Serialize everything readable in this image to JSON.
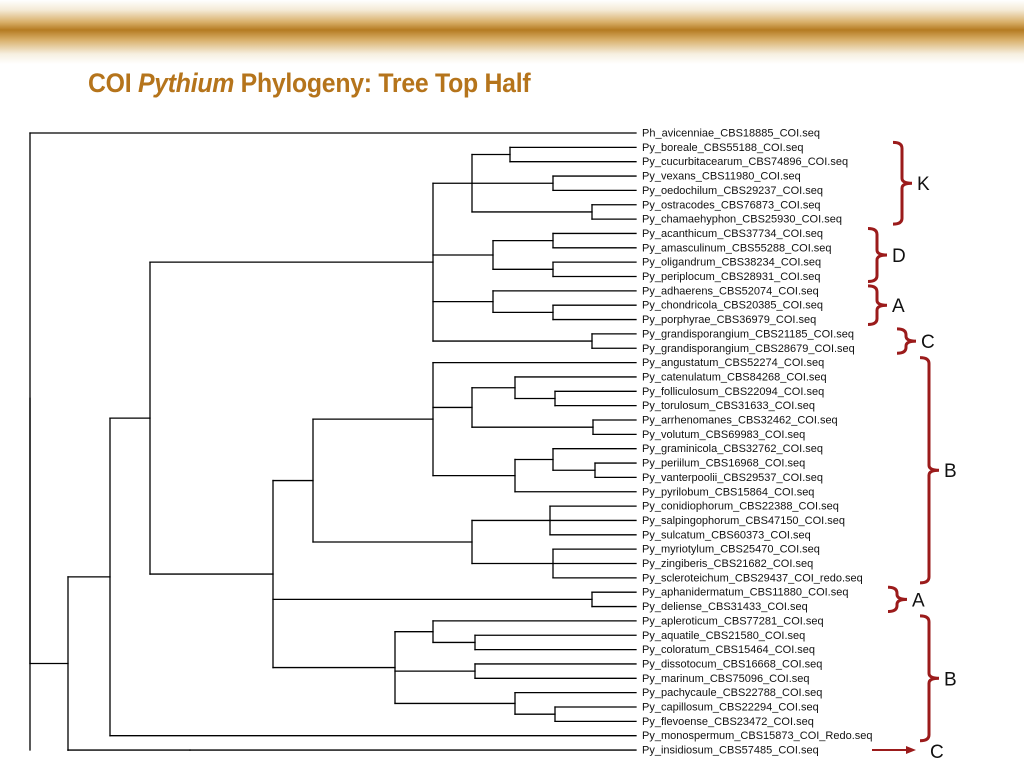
{
  "title": {
    "part1": "COI ",
    "part2": "Pythium",
    "part3": " Phylogeny: Tree Top Half"
  },
  "colors": {
    "title": "#b5741b",
    "bracket": "#9b1b1b",
    "branch": "#000000"
  },
  "taxa": [
    "Ph_avicenniae_CBS18885_COI.seq",
    "Py_boreale_CBS55188_COI.seq",
    "Py_cucurbitacearum_CBS74896_COI.seq",
    "Py_vexans_CBS11980_COI.seq",
    "Py_oedochilum_CBS29237_COI.seq",
    "Py_ostracodes_CBS76873_COI.seq",
    "Py_chamaehyphon_CBS25930_COI.seq",
    "Py_acanthicum_CBS37734_COI.seq",
    "Py_amasculinum_CBS55288_COI.seq",
    "Py_oligandrum_CBS38234_COI.seq",
    "Py_periplocum_CBS28931_COI.seq",
    "Py_adhaerens_CBS52074_COI.seq",
    "Py_chondricola_CBS20385_COI.seq",
    "Py_porphyrae_CBS36979_COI.seq",
    "Py_grandisporangium_CBS21185_COI.seq",
    "Py_grandisporangium_CBS28679_COI.seq",
    "Py_angustatum_CBS52274_COI.seq",
    "Py_catenulatum_CBS84268_COI.seq",
    "Py_folliculosum_CBS22094_COI.seq",
    "Py_torulosum_CBS31633_COI.seq",
    "Py_arrhenomanes_CBS32462_COI.seq",
    "Py_volutum_CBS69983_COI.seq",
    "Py_graminicola_CBS32762_COI.seq",
    "Py_periilum_CBS16968_COI.seq",
    "Py_vanterpoolii_CBS29537_COI.seq",
    "Py_pyrilobum_CBS15864_COI.seq",
    "Py_conidiophorum_CBS22388_COI.seq",
    "Py_salpingophorum_CBS47150_COI.seq",
    "Py_sulcatum_CBS60373_COI.seq",
    "Py_myriotylum_CBS25470_COI.seq",
    "Py_zingiberis_CBS21682_COI.seq",
    "Py_scleroteichum_CBS29437_COI_redo.seq",
    "Py_aphanidermatum_CBS11880_COI.seq",
    "Py_deliense_CBS31433_COI.seq",
    "Py_apleroticum_CBS77281_COI.seq",
    "Py_aquatile_CBS21580_COI.seq",
    "Py_coloratum_CBS15464_COI.seq",
    "Py_dissotocum_CBS16668_COI.seq",
    "Py_marinum_CBS75096_COI.seq",
    "Py_pachycaule_CBS22788_COI.seq",
    "Py_capillosum_CBS22294_COI.seq",
    "Py_flevoense_CBS23472_COI.seq",
    "Py_monospermum_CBS15873_COI_Redo.seq",
    "Py_insidiosum_CBS57485_COI.seq"
  ],
  "groups": [
    {
      "label": "K",
      "from": 1,
      "to": 6
    },
    {
      "label": "D",
      "from": 7,
      "to": 10
    },
    {
      "label": "A",
      "from": 11,
      "to": 13
    },
    {
      "label": "C",
      "from": 14,
      "to": 15
    },
    {
      "label": "B",
      "from": 16,
      "to": 31
    },
    {
      "label": "A",
      "from": 32,
      "to": 33
    },
    {
      "label": "B",
      "from": 34,
      "to": 42
    }
  ],
  "arrow_group": {
    "label": "C",
    "taxon": 43
  }
}
